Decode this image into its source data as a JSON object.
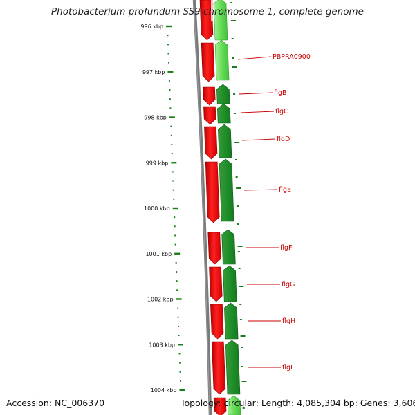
{
  "title": "Photobacterium profundum SS9 chromosome 1, complete genome",
  "footer": {
    "accession": "Accession: NC_006370",
    "topology": "Topology: circular; Length: 4,085,304 bp; Genes: 3,606"
  },
  "colors": {
    "background": "#ffffff",
    "backbone": "#7a7a7a",
    "forward_cds": "#ff0000",
    "reverse_cds": "#1f8f2a",
    "reverse_cds_light": "#66dd55",
    "label": "#cc0000",
    "ticks": "#1a7f1a"
  },
  "ticks": [
    {
      "label": "996 kbp",
      "kbp": 996
    },
    {
      "label": "997 kbp",
      "kbp": 997
    },
    {
      "label": "998 kbp",
      "kbp": 998
    },
    {
      "label": "999 kbp",
      "kbp": 999
    },
    {
      "label": "1000 kbp",
      "kbp": 1000
    },
    {
      "label": "1001 kbp",
      "kbp": 1001
    },
    {
      "label": "1002 kbp",
      "kbp": 1002
    },
    {
      "label": "1003 kbp",
      "kbp": 1003
    },
    {
      "label": "1004 kbp",
      "kbp": 1004
    }
  ],
  "genes": [
    {
      "name": "PBPRA0900",
      "start": 996.6,
      "end": 997.3
    },
    {
      "name": "flgB",
      "start": 997.35,
      "end": 997.75
    },
    {
      "name": "flgC",
      "start": 997.77,
      "end": 998.18
    },
    {
      "name": "flgD",
      "start": 998.2,
      "end": 998.9
    },
    {
      "name": "flgE",
      "start": 998.95,
      "end": 1000.3
    },
    {
      "name": "flgF",
      "start": 1000.5,
      "end": 1001.25
    },
    {
      "name": "flgG",
      "start": 1001.28,
      "end": 1002.05
    },
    {
      "name": "flgH",
      "start": 1002.1,
      "end": 1002.9
    },
    {
      "name": "flgI",
      "start": 1002.95,
      "end": 1004.1
    }
  ]
}
